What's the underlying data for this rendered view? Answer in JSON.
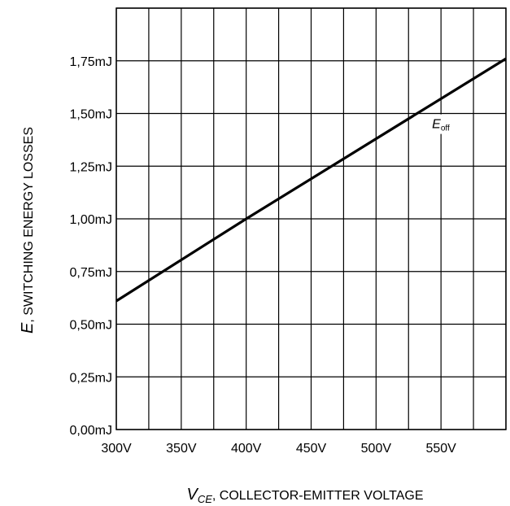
{
  "chart_data": {
    "type": "line",
    "x_unit": "V",
    "y_unit": "mJ",
    "xlim": [
      300,
      600
    ],
    "ylim": [
      0,
      2.0
    ],
    "x_ticks": [
      300,
      350,
      400,
      450,
      500,
      550
    ],
    "x_tick_labels": [
      "300V",
      "350V",
      "400V",
      "450V",
      "500V",
      "550V"
    ],
    "x_grid": [
      300,
      325,
      350,
      375,
      400,
      425,
      450,
      475,
      500,
      525,
      550,
      575,
      600
    ],
    "y_ticks": [
      0,
      0.25,
      0.5,
      0.75,
      1.0,
      1.25,
      1.5,
      1.75
    ],
    "y_tick_labels": [
      "0,00mJ",
      "0,25mJ",
      "0,50mJ",
      "0,75mJ",
      "1,00mJ",
      "1,25mJ",
      "1,50mJ",
      "1,75mJ"
    ],
    "y_grid": [
      0,
      0.25,
      0.5,
      0.75,
      1.0,
      1.25,
      1.5,
      1.75,
      2.0
    ],
    "grid": true,
    "xlabel": {
      "var": "V",
      "sub": "CE",
      "text": ", COLLECTOR-EMITTER VOLTAGE"
    },
    "ylabel": {
      "var": "E",
      "text": ", SWITCHING ENERGY LOSSES"
    },
    "series": [
      {
        "annotation": {
          "var": "E",
          "sub": "off"
        },
        "x": [
          300,
          400,
          600
        ],
        "y": [
          0.61,
          1.0,
          1.76
        ],
        "color": "#000000"
      }
    ]
  }
}
